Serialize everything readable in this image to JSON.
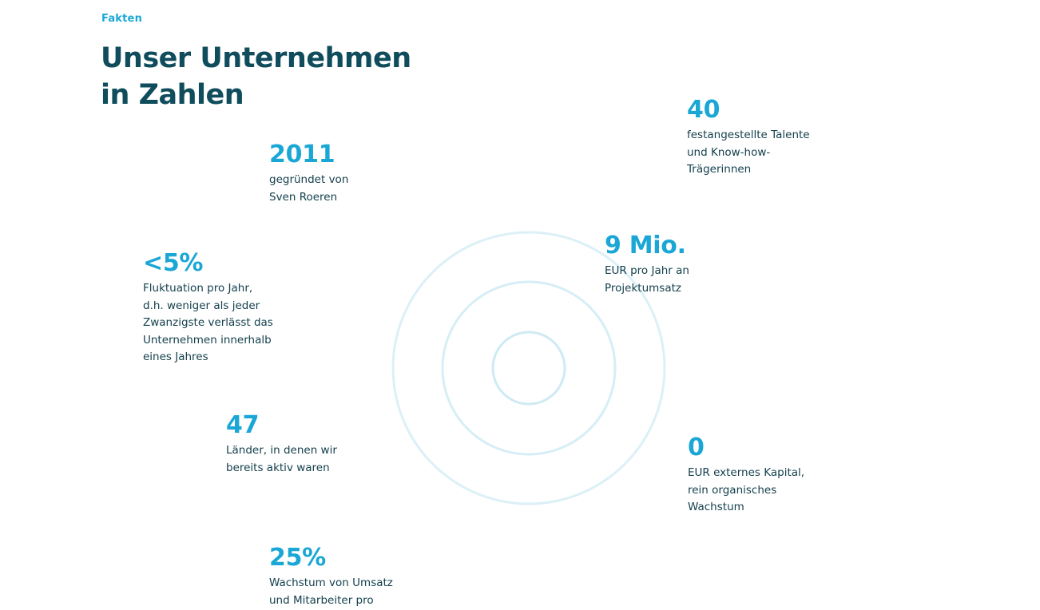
{
  "section": {
    "eyebrow": "Fakten",
    "title_line1": "Unser Unternehmen",
    "title_line2": "in Zahlen"
  },
  "facts": [
    {
      "value": "2011",
      "description": "gegründet von\nSven Roeren"
    },
    {
      "value": "40",
      "description": "festangestellte Talente\nund Know-how-\nTrägerinnen"
    },
    {
      "value": "<5%",
      "description": "Fluktuation pro Jahr,\nd.h. weniger als jeder\nZwanzigste verlässt das\nUnternehmen innerhalb\neines Jahres"
    },
    {
      "value": "9 Mio.",
      "description": "EUR pro Jahr an\nProjektumsatz"
    },
    {
      "value": "47",
      "description": "Länder, in denen wir\nbereits aktiv waren"
    },
    {
      "value": "0",
      "description": "EUR externes Kapital,\nrein organisches\nWachstum"
    },
    {
      "value": "25%",
      "description": "Wachstum von Umsatz\nund Mitarbeiter pro"
    }
  ],
  "colors": {
    "accent": "#1aa7d6",
    "heading": "#0f4c5c",
    "text": "#14404d",
    "ring": "#d6eef6"
  }
}
